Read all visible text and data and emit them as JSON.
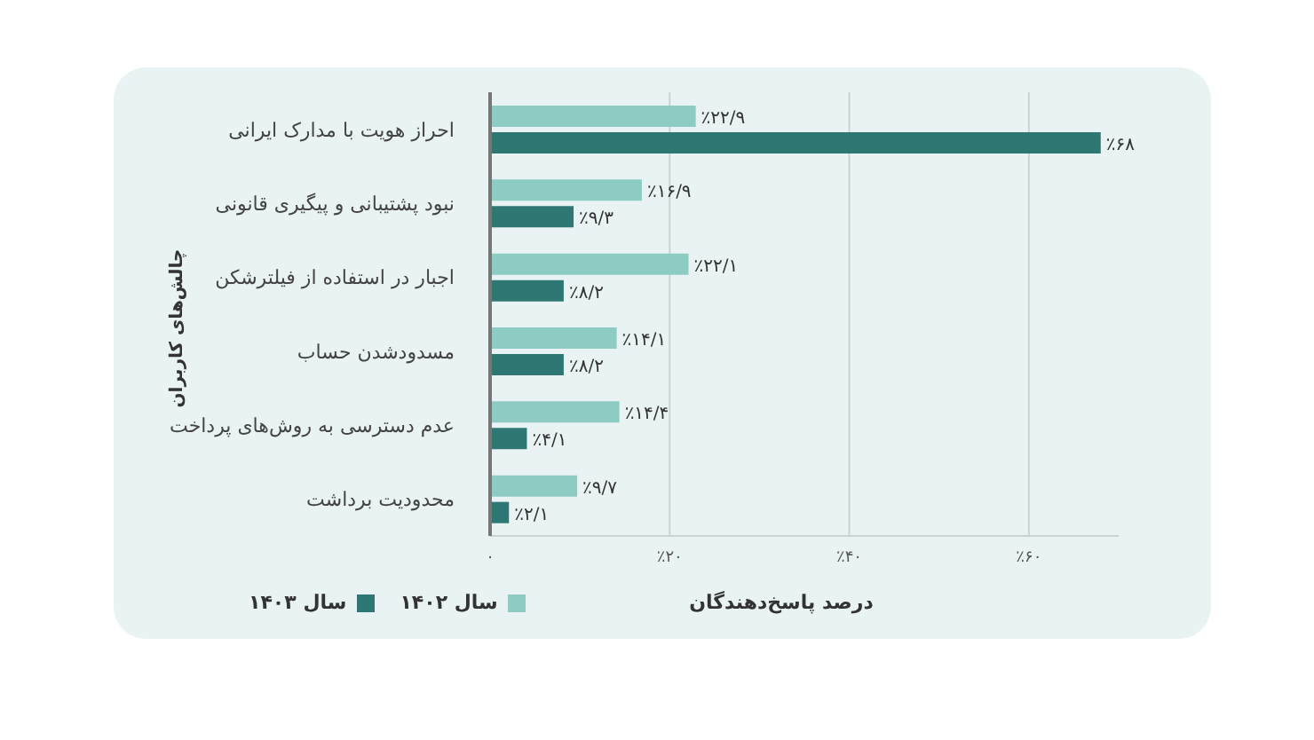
{
  "chart_data": {
    "type": "bar",
    "orientation": "horizontal",
    "xlabel": "درصد پاسخ‌دهندگان",
    "ylabel": "چالش‌های کاربران",
    "categories": [
      "احراز هویت با مدارک ایرانی",
      "نبود پشتیبانی و پیگیری قانونی",
      "اجبار در استفاده از فیلترشکن",
      "مسدودشدن حساب",
      "عدم دسترسی به روش‌های پرداخت",
      "محدودیت برداشت"
    ],
    "series": [
      {
        "name": "سال ۱۴۰۲",
        "color": "#8ecbc2",
        "values": [
          22.9,
          16.9,
          22.1,
          14.1,
          14.4,
          9.7
        ],
        "value_labels": [
          "٪۲۲/۹",
          "٪۱۶/۹",
          "٪۲۲/۱",
          "٪۱۴/۱",
          "٪۱۴/۴",
          "٪۹/۷"
        ]
      },
      {
        "name": "سال ۱۴۰۳",
        "color": "#2f7773",
        "values": [
          68,
          9.3,
          8.2,
          8.2,
          4.1,
          2.1
        ],
        "value_labels": [
          "٪۶۸",
          "٪۹/۳",
          "٪۸/۲",
          "٪۸/۲",
          "٪۴/۱",
          "٪۲/۱"
        ]
      }
    ],
    "xticks": [
      {
        "value": 0,
        "label": "۰"
      },
      {
        "value": 20,
        "label": "٪۲۰"
      },
      {
        "value": 40,
        "label": "٪۴۰"
      },
      {
        "value": 60,
        "label": "٪۶۰"
      }
    ],
    "xlim": [
      0,
      70
    ],
    "grid": "x",
    "legend": "bottom left"
  }
}
